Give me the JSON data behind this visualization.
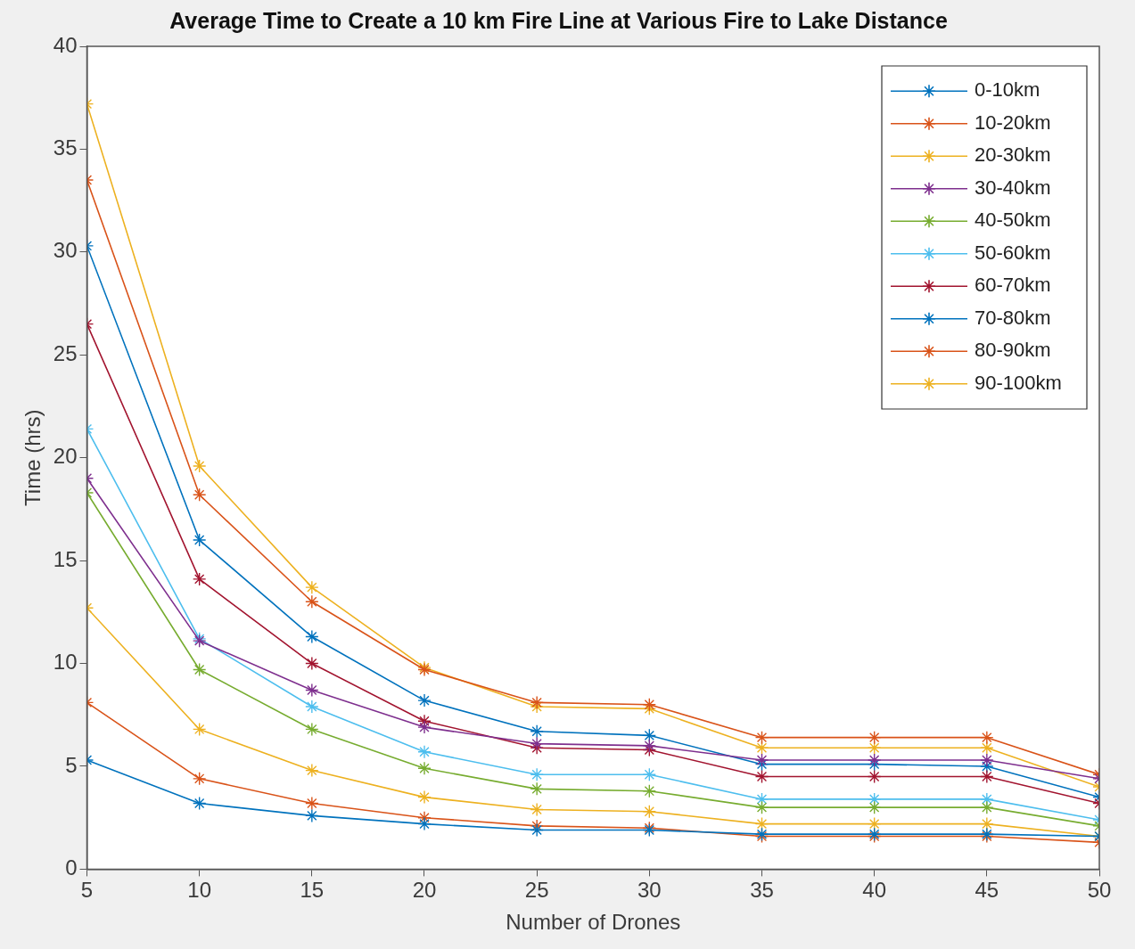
{
  "chart_data": {
    "type": "line",
    "title": "Average Time to Create a 10 km Fire Line at Various Fire to Lake Distance",
    "xlabel": "Number of Drones",
    "ylabel": "Time (hrs)",
    "x": [
      5,
      10,
      15,
      20,
      25,
      30,
      35,
      40,
      45,
      50
    ],
    "xlim": [
      5,
      50
    ],
    "xticks": [
      5,
      10,
      15,
      20,
      25,
      30,
      35,
      40,
      45,
      50
    ],
    "ylim": [
      0,
      40
    ],
    "yticks": [
      0,
      5,
      10,
      15,
      20,
      25,
      30,
      35,
      40
    ],
    "grid": false,
    "legend": "top right",
    "marker": "cross",
    "line_style": "solid",
    "series": [
      {
        "name": "0-10km",
        "color": "#0072bd",
        "values": [
          5.3,
          3.2,
          2.6,
          2.2,
          1.9,
          1.9,
          1.7,
          1.7,
          1.7,
          1.6
        ]
      },
      {
        "name": "10-20km",
        "color": "#d95319",
        "values": [
          8.1,
          4.4,
          3.2,
          2.5,
          2.1,
          2.0,
          1.6,
          1.6,
          1.6,
          1.3
        ]
      },
      {
        "name": "20-30km",
        "color": "#edb120",
        "values": [
          12.7,
          6.8,
          4.8,
          3.5,
          2.9,
          2.8,
          2.2,
          2.2,
          2.2,
          1.6
        ]
      },
      {
        "name": "30-40km",
        "color": "#7e2f8e",
        "values": [
          19.0,
          11.1,
          8.7,
          6.9,
          6.1,
          6.0,
          5.3,
          5.3,
          5.3,
          4.4
        ]
      },
      {
        "name": "40-50km",
        "color": "#77ac30",
        "values": [
          18.3,
          9.7,
          6.8,
          4.9,
          3.9,
          3.8,
          3.0,
          3.0,
          3.0,
          2.1
        ]
      },
      {
        "name": "50-60km",
        "color": "#4dbeee",
        "values": [
          21.4,
          11.2,
          7.9,
          5.7,
          4.6,
          4.6,
          3.4,
          3.4,
          3.4,
          2.4
        ]
      },
      {
        "name": "60-70km",
        "color": "#a2142f",
        "values": [
          26.5,
          14.1,
          10.0,
          7.2,
          5.9,
          5.8,
          4.5,
          4.5,
          4.5,
          3.2
        ]
      },
      {
        "name": "70-80km",
        "color": "#0072bd",
        "values": [
          30.3,
          16.0,
          11.3,
          8.2,
          6.7,
          6.5,
          5.1,
          5.1,
          5.0,
          3.5
        ]
      },
      {
        "name": "80-90km",
        "color": "#d95319",
        "values": [
          33.5,
          18.2,
          13.0,
          9.7,
          8.1,
          8.0,
          6.4,
          6.4,
          6.4,
          4.6
        ]
      },
      {
        "name": "90-100km",
        "color": "#edb120",
        "values": [
          37.2,
          19.6,
          13.7,
          9.8,
          7.9,
          7.8,
          5.9,
          5.9,
          5.9,
          4.0
        ]
      }
    ]
  }
}
